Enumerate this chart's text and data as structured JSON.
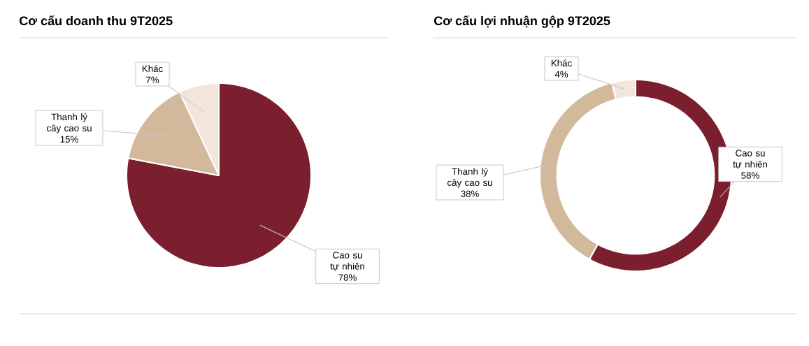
{
  "chart_data": [
    {
      "type": "pie",
      "title": "Cơ cấu doanh thu 9T2025",
      "categories": [
        "Cao su tự nhiên",
        "Thanh lý cây cao su",
        "Khác"
      ],
      "values": [
        78,
        15,
        7
      ],
      "colors": [
        "#7b1f2e",
        "#d2b99c",
        "#f2e6dc"
      ],
      "value_labels": [
        "78%",
        "15%",
        "7%"
      ]
    },
    {
      "type": "donut",
      "title": "Cơ cấu lợi nhuận gộp 9T2025",
      "categories": [
        "Cao su tự nhiên",
        "Thanh lý cây cao su",
        "Khác"
      ],
      "values": [
        58,
        38,
        4
      ],
      "colors": [
        "#7b1f2e",
        "#d2b99c",
        "#f2e6dc"
      ],
      "value_labels": [
        "58%",
        "38%",
        "4%"
      ]
    }
  ]
}
